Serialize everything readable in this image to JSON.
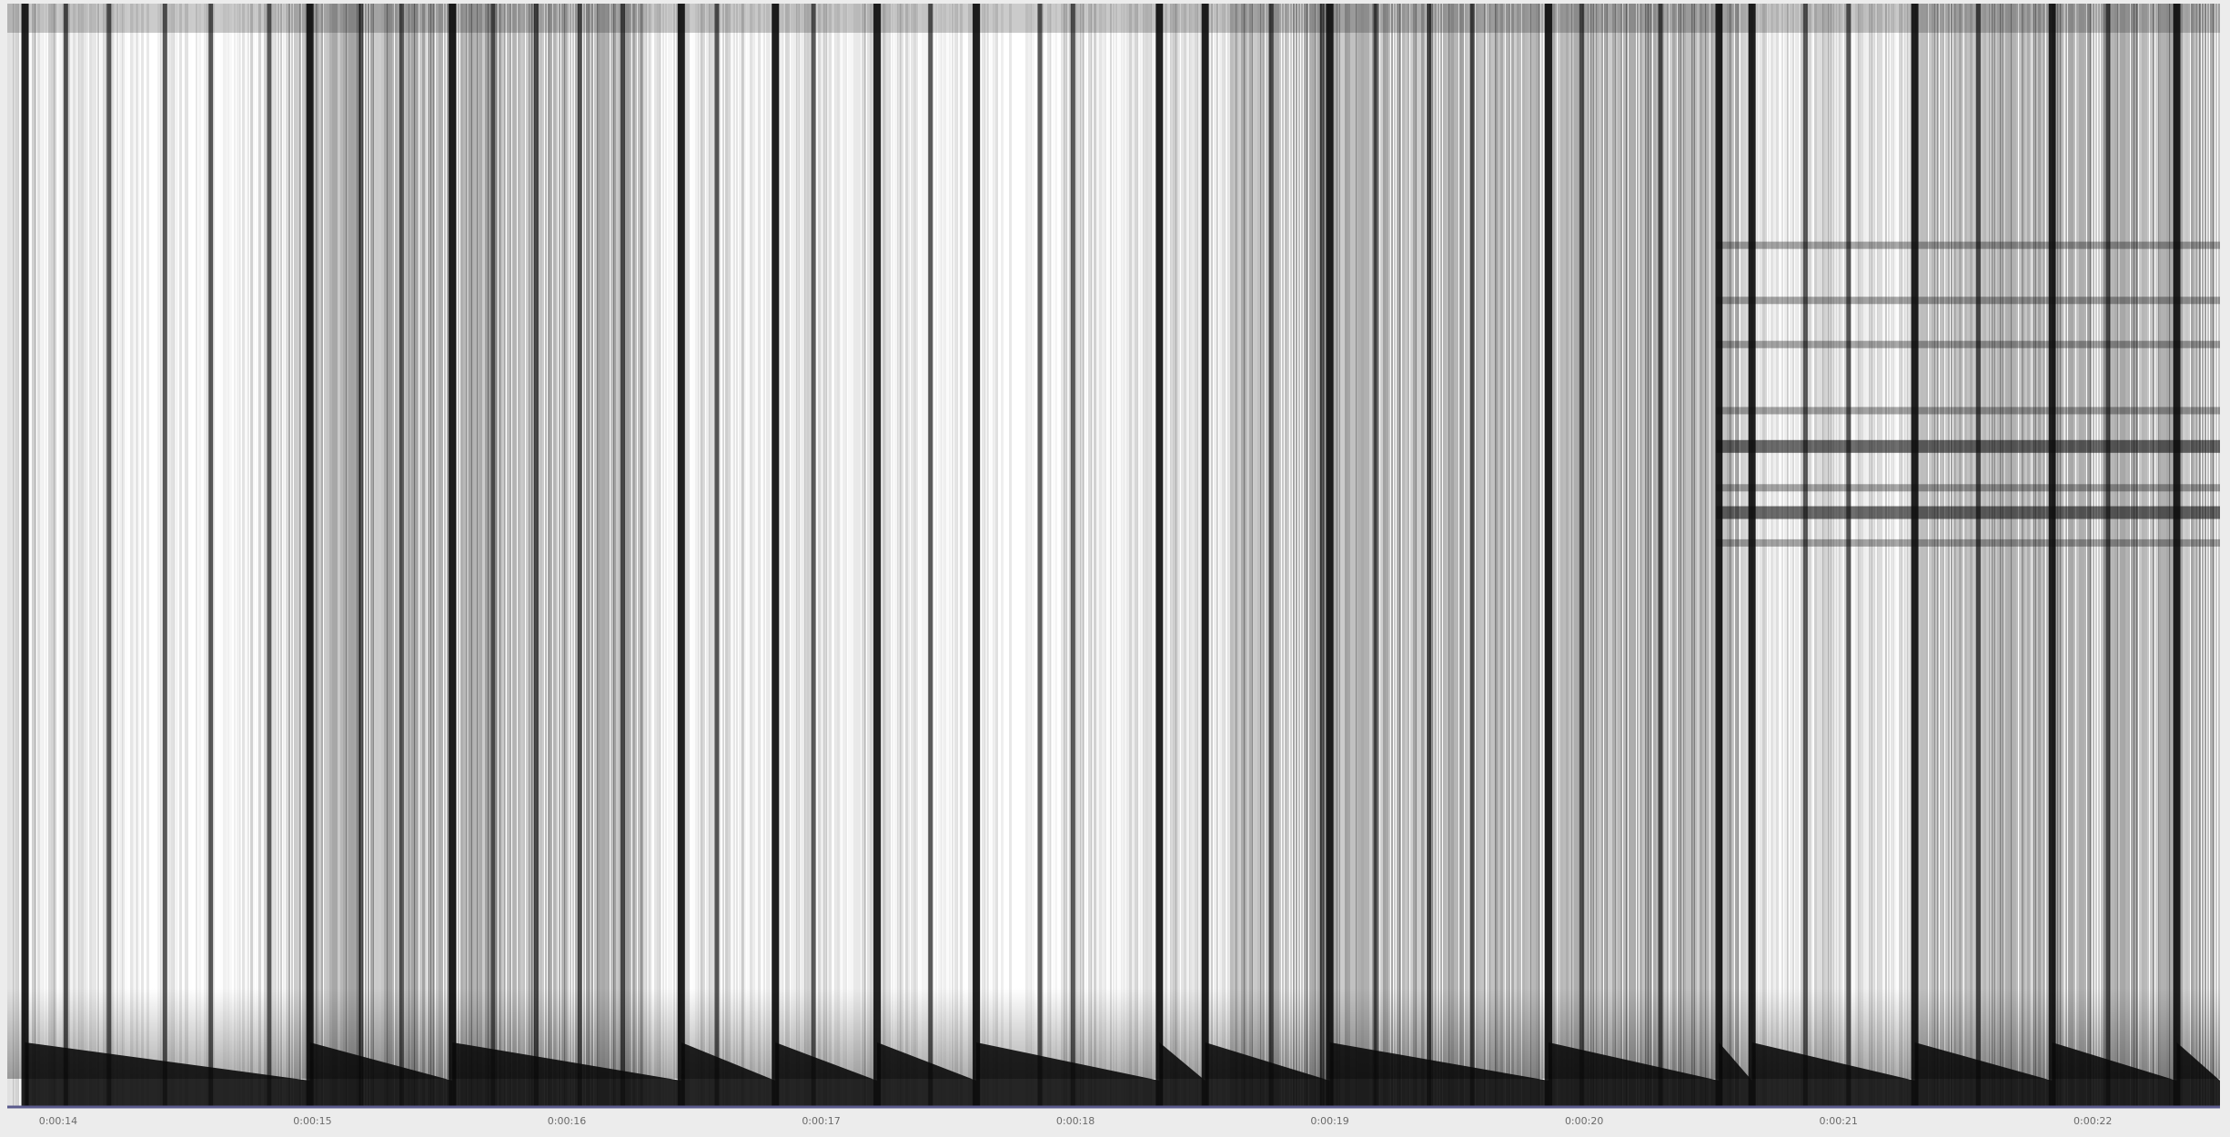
{
  "chart_data": {
    "type": "heatmap",
    "title": "",
    "xlabel": "",
    "ylabel": "",
    "x_tick_labels": [
      "0:00:14",
      "0:00:15",
      "0:00:16",
      "0:00:17",
      "0:00:18",
      "0:00:19",
      "0:00:20",
      "0:00:21",
      "0:00:22"
    ],
    "x_tick_times_s": [
      14,
      15,
      16,
      17,
      18,
      19,
      20,
      21,
      22
    ],
    "x_range_s": [
      13.8,
      22.5
    ],
    "colormap": "grayscale (dark = high energy, white = low energy)",
    "grid": false,
    "legend": "none",
    "onsets_s": [
      13.87,
      14.03,
      14.2,
      14.42,
      14.6,
      14.83,
      14.99,
      15.19,
      15.35,
      15.55,
      15.71,
      15.88,
      16.05,
      16.22,
      16.45,
      16.59,
      16.82,
      16.97,
      17.22,
      17.43,
      17.61,
      17.86,
      17.99,
      18.33,
      18.51,
      18.77,
      18.97,
      19.18,
      19.39,
      19.56,
      19.86,
      19.99,
      20.3,
      20.53,
      20.66,
      20.87,
      21.04,
      21.3,
      21.55,
      21.84,
      22.06,
      22.33
    ],
    "strong_onsets_s": [
      13.87,
      14.99,
      15.55,
      16.45,
      16.82,
      17.22,
      17.61,
      18.33,
      18.51,
      19.0,
      19.86,
      20.53,
      20.66,
      21.3,
      21.84,
      22.33
    ],
    "high_noise_spans_s": [
      [
        14.9,
        16.3
      ],
      [
        18.6,
        20.6
      ],
      [
        21.3,
        22.5
      ]
    ],
    "bright_spans_s": [
      [
        17.4,
        17.95
      ],
      [
        14.25,
        14.75
      ]
    ],
    "band_region": {
      "x_range_s": [
        20.52,
        22.5
      ],
      "band_positions_frac_from_top": [
        0.22,
        0.27,
        0.31,
        0.37,
        0.4,
        0.44,
        0.46,
        0.49
      ]
    }
  },
  "colors": {
    "background": "#ececec",
    "baseline": "#5a5a8c",
    "tick_label": "#6a6a6a",
    "low_energy": "#ffffff",
    "high_energy": "#101010"
  }
}
